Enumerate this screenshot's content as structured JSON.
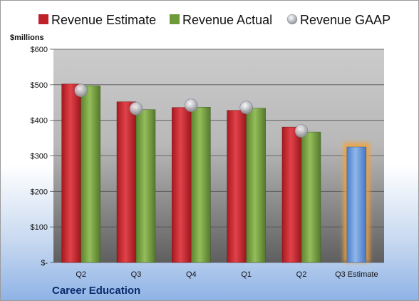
{
  "chart_data": {
    "type": "bar",
    "company": "Career Education",
    "unit_label": "$millions",
    "categories": [
      "Q2",
      "Q3",
      "Q4",
      "Q1",
      "Q2",
      "Q3 Estimate"
    ],
    "series": [
      {
        "name": "Revenue Estimate",
        "color": "#c0202a",
        "values": [
          502,
          452,
          436,
          428,
          381,
          null
        ]
      },
      {
        "name": "Revenue Actual",
        "color": "#6f9a3a",
        "values": [
          497,
          430,
          437,
          434,
          367,
          null
        ]
      },
      {
        "name": "Revenue GAAP",
        "color": "#b8bcc4",
        "values": [
          484,
          433,
          442,
          436,
          370,
          null
        ]
      },
      {
        "name": "",
        "color": "#5b8fd6",
        "values": [
          null,
          null,
          null,
          null,
          null,
          325
        ]
      }
    ],
    "ylim": [
      0,
      600
    ],
    "yticks": [
      0,
      100,
      200,
      300,
      400,
      500,
      600
    ],
    "ytick_labels": [
      "$-",
      "$100",
      "$200",
      "$300",
      "$400",
      "$500",
      "$600"
    ],
    "grid": true,
    "legend_position": "top"
  }
}
